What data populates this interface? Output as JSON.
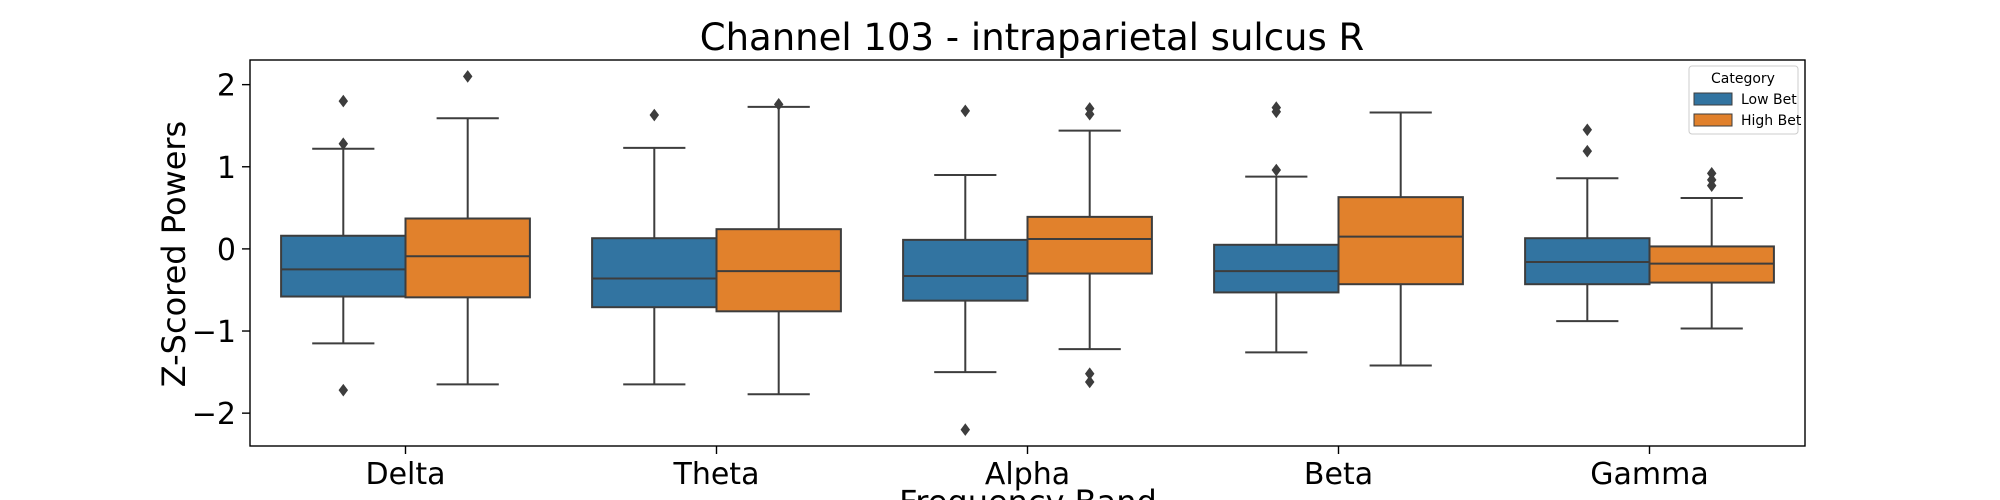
{
  "chart_data": {
    "type": "box",
    "title": "Channel 103 - intraparietal sulcus R",
    "xlabel": "Frequency Band",
    "ylabel": "Z-Scored Powers",
    "categories": [
      "Delta",
      "Theta",
      "Alpha",
      "Beta",
      "Gamma"
    ],
    "ylim": [
      -2.4,
      2.3
    ],
    "yticks": [
      -2,
      -1,
      0,
      1,
      2
    ],
    "ytick_labels": [
      "−2",
      "−1",
      "0",
      "1",
      "2"
    ],
    "grid": false,
    "legend": {
      "title": "Category",
      "placement": "top-right",
      "entries": [
        "Low Bet",
        "High Bet"
      ]
    },
    "series": [
      {
        "name": "Low Bet",
        "color": "#3274a1",
        "boxes": [
          {
            "whisker_low": -1.15,
            "q1": -0.58,
            "median": -0.25,
            "q3": 0.16,
            "whisker_high": 1.22,
            "outliers": [
              1.8,
              1.28,
              -1.72
            ]
          },
          {
            "whisker_low": -1.65,
            "q1": -0.71,
            "median": -0.36,
            "q3": 0.13,
            "whisker_high": 1.23,
            "outliers": [
              1.63
            ]
          },
          {
            "whisker_low": -1.5,
            "q1": -0.63,
            "median": -0.33,
            "q3": 0.11,
            "whisker_high": 0.9,
            "outliers": [
              1.68,
              -2.2
            ]
          },
          {
            "whisker_low": -1.26,
            "q1": -0.53,
            "median": -0.27,
            "q3": 0.05,
            "whisker_high": 0.88,
            "outliers": [
              1.72,
              1.67,
              0.96
            ]
          },
          {
            "whisker_low": -0.88,
            "q1": -0.43,
            "median": -0.16,
            "q3": 0.13,
            "whisker_high": 0.86,
            "outliers": [
              1.45,
              1.19
            ]
          }
        ]
      },
      {
        "name": "High Bet",
        "color": "#e1812c",
        "boxes": [
          {
            "whisker_low": -1.65,
            "q1": -0.59,
            "median": -0.09,
            "q3": 0.37,
            "whisker_high": 1.59,
            "outliers": [
              2.1
            ]
          },
          {
            "whisker_low": -1.77,
            "q1": -0.76,
            "median": -0.27,
            "q3": 0.24,
            "whisker_high": 1.73,
            "outliers": [
              1.76
            ]
          },
          {
            "whisker_low": -1.22,
            "q1": -0.3,
            "median": 0.12,
            "q3": 0.39,
            "whisker_high": 1.44,
            "outliers": [
              1.71,
              1.64,
              -1.52,
              -1.62
            ]
          },
          {
            "whisker_low": -1.42,
            "q1": -0.43,
            "median": 0.15,
            "q3": 0.63,
            "whisker_high": 1.66,
            "outliers": []
          },
          {
            "whisker_low": -0.97,
            "q1": -0.41,
            "median": -0.18,
            "q3": 0.03,
            "whisker_high": 0.62,
            "outliers": [
              0.92,
              0.84,
              0.77
            ]
          }
        ]
      }
    ]
  }
}
